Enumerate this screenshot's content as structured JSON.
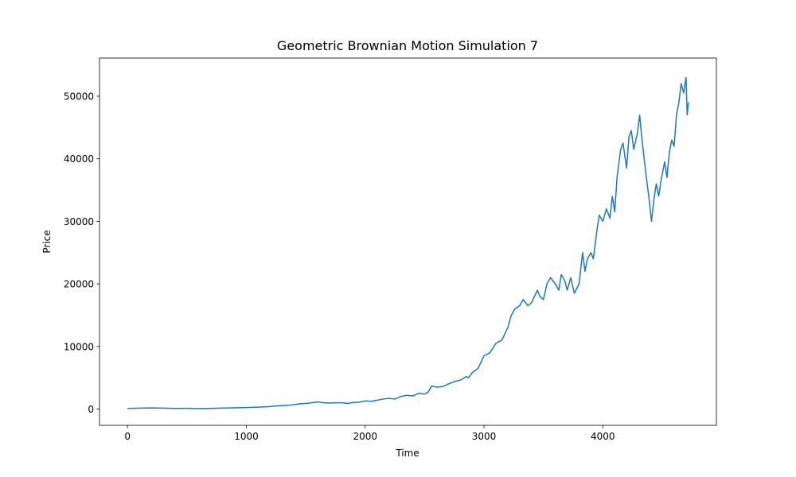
{
  "chart_data": {
    "type": "line",
    "title": "Geometric Brownian Motion Simulation 7",
    "xlabel": "Time",
    "ylabel": "Price",
    "xlim": [
      -236,
      4956
    ],
    "ylim": [
      -2600,
      56100
    ],
    "xticks": [
      0,
      1000,
      2000,
      3000,
      4000
    ],
    "yticks": [
      0,
      10000,
      20000,
      30000,
      40000,
      50000
    ],
    "series": [
      {
        "color": "#1f77b4",
        "x": [
          0,
          100,
          200,
          300,
          400,
          500,
          600,
          700,
          800,
          900,
          1000,
          1100,
          1200,
          1250,
          1300,
          1350,
          1400,
          1450,
          1500,
          1550,
          1600,
          1650,
          1700,
          1750,
          1800,
          1850,
          1900,
          1950,
          2000,
          2050,
          2100,
          2150,
          2200,
          2250,
          2300,
          2350,
          2400,
          2450,
          2500,
          2530,
          2560,
          2600,
          2650,
          2700,
          2750,
          2800,
          2850,
          2870,
          2900,
          2950,
          3000,
          3050,
          3100,
          3150,
          3200,
          3230,
          3260,
          3300,
          3330,
          3370,
          3400,
          3450,
          3470,
          3500,
          3530,
          3560,
          3600,
          3630,
          3650,
          3680,
          3700,
          3730,
          3760,
          3800,
          3830,
          3850,
          3870,
          3900,
          3920,
          3950,
          3970,
          4000,
          4030,
          4060,
          4080,
          4100,
          4120,
          4150,
          4170,
          4200,
          4220,
          4240,
          4260,
          4290,
          4310,
          4330,
          4360,
          4390,
          4410,
          4430,
          4450,
          4470,
          4490,
          4520,
          4540,
          4560,
          4580,
          4600,
          4620,
          4640,
          4660,
          4680,
          4700,
          4710,
          4720
        ],
        "values": [
          100,
          150,
          180,
          150,
          100,
          110,
          80,
          100,
          160,
          200,
          250,
          300,
          400,
          500,
          550,
          600,
          700,
          850,
          900,
          1000,
          1150,
          1000,
          950,
          1000,
          1000,
          900,
          1050,
          1100,
          1300,
          1250,
          1400,
          1600,
          1700,
          1600,
          2000,
          2200,
          2100,
          2500,
          2400,
          2700,
          3700,
          3500,
          3600,
          4000,
          4400,
          4600,
          5200,
          5000,
          5800,
          6500,
          8500,
          9000,
          10500,
          11000,
          13000,
          15000,
          16000,
          16500,
          17500,
          16500,
          17000,
          19000,
          18000,
          17500,
          20000,
          21000,
          20000,
          19000,
          21500,
          20500,
          19000,
          21000,
          18500,
          20000,
          25000,
          22000,
          24000,
          25000,
          24000,
          28500,
          31000,
          30000,
          32000,
          30500,
          34000,
          31500,
          37000,
          41500,
          42500,
          38500,
          43500,
          44500,
          41500,
          44000,
          47000,
          43000,
          38000,
          33500,
          30000,
          33500,
          36000,
          34000,
          36500,
          39500,
          37000,
          41000,
          43000,
          42000,
          47000,
          49000,
          52000,
          50500,
          53000,
          47000,
          49000
        ]
      }
    ]
  }
}
